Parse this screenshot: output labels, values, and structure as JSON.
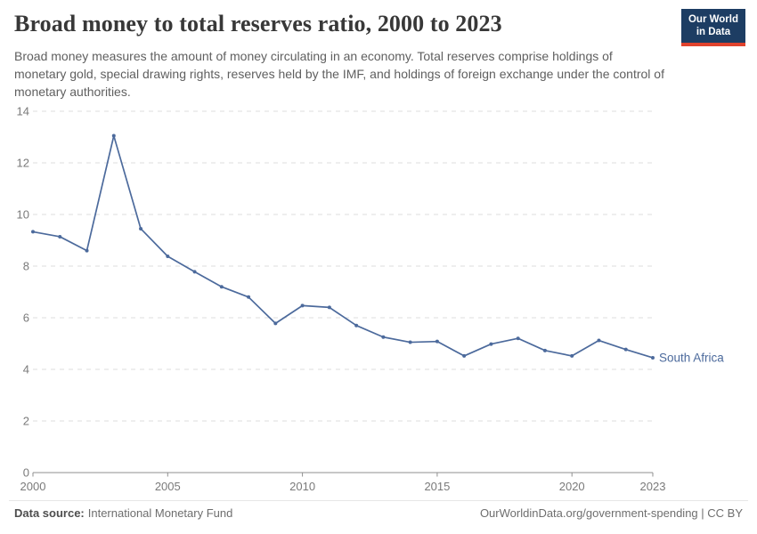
{
  "header": {
    "title": "Broad money to total reserves ratio, 2000 to 2023",
    "subtitle": "Broad money measures the amount of money circulating in an economy. Total reserves comprise holdings of monetary gold, special drawing rights, reserves held by the IMF, and holdings of foreign exchange under the control of monetary authorities.",
    "logo": {
      "line1": "Our World",
      "line2": "in Data"
    }
  },
  "chart_data": {
    "type": "line",
    "title": "Broad money to total reserves ratio, 2000 to 2023",
    "x": [
      2000,
      2001,
      2002,
      2003,
      2004,
      2005,
      2006,
      2007,
      2008,
      2009,
      2010,
      2011,
      2012,
      2013,
      2014,
      2015,
      2016,
      2017,
      2018,
      2019,
      2020,
      2021,
      2022,
      2023
    ],
    "series": [
      {
        "name": "South Africa",
        "color": "#4C6A9C",
        "values": [
          9.33,
          9.14,
          8.6,
          13.05,
          9.45,
          8.38,
          7.78,
          7.2,
          6.8,
          5.78,
          6.47,
          6.4,
          5.7,
          5.25,
          5.05,
          5.08,
          4.52,
          4.98,
          5.2,
          4.73,
          4.52,
          5.12,
          4.77,
          4.45
        ]
      }
    ],
    "xlabel": "",
    "ylabel": "",
    "ylim": [
      0,
      14
    ],
    "xlim": [
      2000,
      2023
    ],
    "yticks": [
      0,
      2,
      4,
      6,
      8,
      10,
      12,
      14
    ],
    "xticks": [
      2000,
      2005,
      2010,
      2015,
      2020,
      2023
    ],
    "grid": "horizontal-dashed",
    "legend_position": "label-at-line-end"
  },
  "footer": {
    "datasource_label": "Data source:",
    "datasource_value": "International Monetary Fund",
    "credit": "OurWorldinData.org/government-spending | CC BY"
  },
  "colors": {
    "line": "#4C6A9C",
    "logo_bg": "#1d3d63",
    "logo_accent": "#e0422d",
    "grid": "#dcdcdc",
    "axis": "#8f8f8f",
    "tick_label": "#7a7a7a",
    "title_text": "#383838",
    "subtitle_text": "#5f5f5f"
  }
}
